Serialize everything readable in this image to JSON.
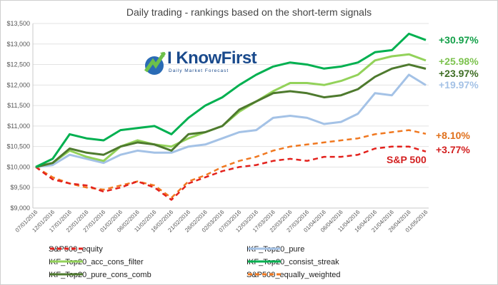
{
  "title": "Daily trading - rankings based on the short-term signals",
  "logo": {
    "name": "I KnowFirst",
    "tagline": "Daily Market Forecast",
    "icon": "globe-arrow-logo-icon"
  },
  "legend": [
    {
      "label": "S&P500_equity",
      "color": "#e3211c",
      "dash": true
    },
    {
      "label": "IKF_Top20_pure",
      "color": "#a4c2e6",
      "dash": false
    },
    {
      "label": "IKF_Top20_acc_cons_filter",
      "color": "#93d25a",
      "dash": false
    },
    {
      "label": "IKF_Top20_consist_streak",
      "color": "#00b050",
      "dash": false
    },
    {
      "label": "IKF_Top20_pure_cons_comb",
      "color": "#4e7a2e",
      "dash": false
    },
    {
      "label": "S&P500_equally_weighted",
      "color": "#f07820",
      "dash": true
    }
  ],
  "annotations": [
    {
      "text": "+30.97%",
      "color": "#13a049"
    },
    {
      "text": "+25.98%",
      "color": "#7cc24e"
    },
    {
      "text": "+23.97%",
      "color": "#3f6e25"
    },
    {
      "text": "+19.97%",
      "color": "#a4c2e6"
    },
    {
      "text": "+8.10%",
      "color": "#e0701b"
    },
    {
      "text": "+3.77%",
      "color": "#d32020"
    }
  ],
  "sp_label": "S&P 500",
  "chart_data": {
    "type": "line",
    "title": "Daily trading - rankings based on the short-term signals",
    "ylim": [
      9000,
      13500
    ],
    "yticks": [
      "$9,000",
      "$9,500",
      "$10,000",
      "$10,500",
      "$11,000",
      "$11,500",
      "$12,000",
      "$12,500",
      "$13,000",
      "$13,500"
    ],
    "grid": "horizontal",
    "legend_position": "bottom",
    "categories": [
      "07/01/2016",
      "12/01/2016",
      "17/01/2016",
      "22/01/2016",
      "27/01/2016",
      "01/02/2016",
      "06/02/2016",
      "11/02/2016",
      "16/02/2016",
      "21/02/2016",
      "26/02/2016",
      "02/03/2016",
      "07/03/2016",
      "12/03/2016",
      "17/03/2016",
      "22/03/2016",
      "27/03/2016",
      "01/04/2016",
      "06/04/2016",
      "11/04/2016",
      "16/04/2016",
      "21/04/2016",
      "26/04/2016",
      "01/05/2016"
    ],
    "series": [
      {
        "name": "S&P500_equity",
        "values": [
          10000,
          9700,
          9600,
          9550,
          9400,
          9500,
          9650,
          9500,
          9200,
          9600,
          9750,
          9900,
          10000,
          10050,
          10150,
          10200,
          10150,
          10250,
          10250,
          10300,
          10450,
          10500,
          10500,
          10377
        ]
      },
      {
        "name": "IKF_Top20_pure",
        "values": [
          10000,
          10050,
          10300,
          10200,
          10100,
          10300,
          10400,
          10350,
          10350,
          10500,
          10550,
          10700,
          10850,
          10900,
          11200,
          11250,
          11200,
          11050,
          11100,
          11300,
          11800,
          11750,
          12250,
          11997
        ]
      },
      {
        "name": "IKF_Top20_acc_cons_filter",
        "values": [
          10000,
          10100,
          10400,
          10250,
          10150,
          10500,
          10650,
          10550,
          10500,
          10700,
          10850,
          11000,
          11350,
          11600,
          11850,
          12050,
          12050,
          12000,
          12100,
          12250,
          12600,
          12700,
          12750,
          12598
        ]
      },
      {
        "name": "IKF_Top20_consist_streak",
        "values": [
          10000,
          10200,
          10800,
          10700,
          10650,
          10900,
          10950,
          11000,
          10800,
          11200,
          11500,
          11700,
          12000,
          12250,
          12450,
          12550,
          12500,
          12400,
          12450,
          12550,
          12800,
          12850,
          13250,
          13097
        ]
      },
      {
        "name": "IKF_Top20_pure_cons_comb",
        "values": [
          10000,
          10100,
          10450,
          10350,
          10300,
          10500,
          10600,
          10550,
          10400,
          10800,
          10850,
          11000,
          11400,
          11600,
          11800,
          11850,
          11800,
          11700,
          11750,
          11900,
          12200,
          12400,
          12500,
          12397
        ]
      },
      {
        "name": "S&P500_equally_weighted",
        "values": [
          10000,
          9750,
          9600,
          9500,
          9450,
          9550,
          9650,
          9550,
          9250,
          9650,
          9800,
          10000,
          10150,
          10250,
          10400,
          10500,
          10550,
          10600,
          10650,
          10700,
          10800,
          10850,
          10900,
          10810
        ]
      }
    ]
  }
}
